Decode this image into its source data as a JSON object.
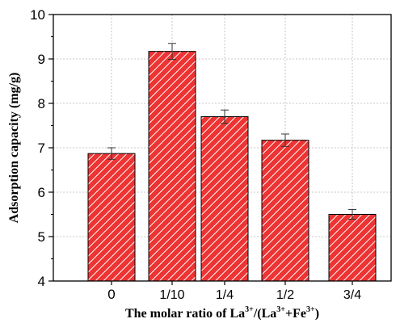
{
  "chart_data": {
    "type": "bar",
    "categories": [
      "0",
      "1/10",
      "1/4",
      "1/2",
      "3/4"
    ],
    "values": [
      6.87,
      9.17,
      7.7,
      7.17,
      5.5
    ],
    "errors": [
      0.13,
      0.18,
      0.15,
      0.14,
      0.11
    ],
    "ylim": [
      4,
      10
    ],
    "yticks": [
      "4",
      "5",
      "6",
      "7",
      "8",
      "9",
      "10"
    ],
    "ylabel": "Adsorption capacity (mg/g)",
    "xlabel": {
      "prefix": "The molar ratio of La",
      "sup1": "3+",
      "mid": "/(La",
      "sup2": "3+",
      "plus": "+Fe",
      "sup3": "3+",
      "suffix": ")"
    },
    "grid": true,
    "bar_color": "#ee3333",
    "hatch": "diagonal white lines"
  }
}
